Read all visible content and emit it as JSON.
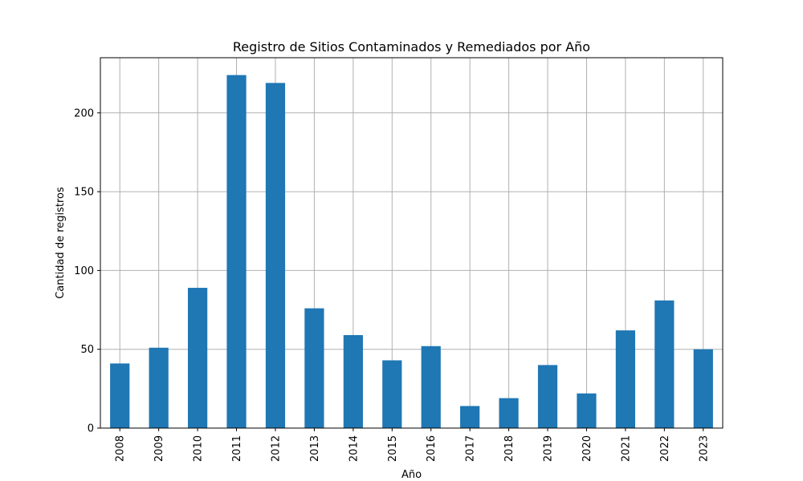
{
  "chart_data": {
    "type": "bar",
    "title": "Registro de Sitios Contaminados y Remediados por Año",
    "xlabel": "Año",
    "ylabel": "Cantidad de registros",
    "categories": [
      "2008",
      "2009",
      "2010",
      "2011",
      "2012",
      "2013",
      "2014",
      "2015",
      "2016",
      "2017",
      "2018",
      "2019",
      "2020",
      "2021",
      "2022",
      "2023"
    ],
    "values": [
      41,
      51,
      89,
      224,
      219,
      76,
      59,
      43,
      52,
      14,
      19,
      40,
      22,
      62,
      81,
      50
    ],
    "ylim": [
      0,
      235
    ],
    "yticks": [
      0,
      50,
      100,
      150,
      200
    ],
    "grid": true,
    "bar_color": "#1f77b4",
    "grid_color": "#b0b0b0"
  }
}
